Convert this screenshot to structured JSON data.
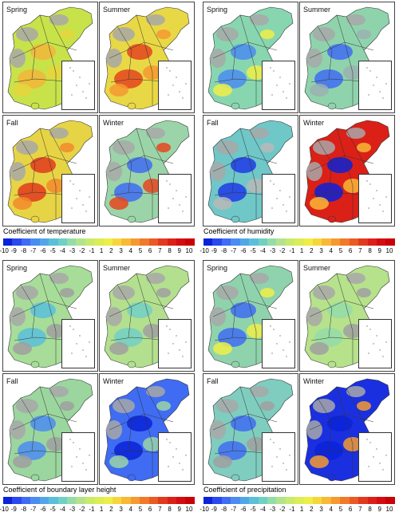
{
  "colorscale": [
    "#0a22d8",
    "#2a48ee",
    "#3f6cf2",
    "#4b8cf0",
    "#52a6e8",
    "#5bbfda",
    "#72cfc4",
    "#94dca9",
    "#b3e38d",
    "#c9ea6e",
    "#dced55",
    "#eeee48",
    "#f6d63c",
    "#f8b936",
    "#f59a30",
    "#f07a2a",
    "#ea5a24",
    "#e23a1e",
    "#db2018",
    "#d40c10",
    "#c80008"
  ],
  "tick_labels": [
    "-10",
    "-9",
    "-8",
    "-7",
    "-6",
    "-5",
    "-4",
    "-3",
    "-2",
    "-1",
    "1",
    "2",
    "3",
    "4",
    "5",
    "6",
    "7",
    "8",
    "9",
    "10"
  ],
  "panels": [
    {
      "colorbar_title": "Coefficient of temperature",
      "maps": [
        {
          "season": "Spring",
          "fill": "#c8e24a",
          "accents": [
            "#f2b53a",
            "#e8d53c"
          ]
        },
        {
          "season": "Summer",
          "fill": "#e9d845",
          "accents": [
            "#e4451f",
            "#f39a30"
          ]
        },
        {
          "season": "Fall",
          "fill": "#e7d445",
          "accents": [
            "#e03a1d",
            "#f28a2b"
          ]
        },
        {
          "season": "Winter",
          "fill": "#9bd4a8",
          "accents": [
            "#3f6cf2",
            "#e6451f"
          ]
        }
      ]
    },
    {
      "colorbar_title": "Coefficient of humidity",
      "maps": [
        {
          "season": "Spring",
          "fill": "#88d6b0",
          "accents": [
            "#4b8cf0",
            "#eeee48"
          ]
        },
        {
          "season": "Summer",
          "fill": "#8fd3ad",
          "accents": [
            "#3f6cf2",
            "#9bb0b0"
          ]
        },
        {
          "season": "Fall",
          "fill": "#6fc7c8",
          "accents": [
            "#1f3ae6",
            "#b8b8b8"
          ]
        },
        {
          "season": "Winter",
          "fill": "#db2018",
          "accents": [
            "#0a22d8",
            "#f8b936"
          ]
        }
      ]
    },
    {
      "colorbar_title": "Coefficient of boundary layer height",
      "maps": [
        {
          "season": "Spring",
          "fill": "#a7dd99",
          "accents": [
            "#5bbfda",
            "#a0a0a0"
          ]
        },
        {
          "season": "Summer",
          "fill": "#b3e08e",
          "accents": [
            "#72cfc4",
            "#a0a0a0"
          ]
        },
        {
          "season": "Fall",
          "fill": "#9bd69f",
          "accents": [
            "#4b8cf0",
            "#a0a0a0"
          ]
        },
        {
          "season": "Winter",
          "fill": "#3f6cf2",
          "accents": [
            "#0a22d8",
            "#9bd4a8"
          ]
        }
      ]
    },
    {
      "colorbar_title": "Coefficient of precipitation",
      "maps": [
        {
          "season": "Spring",
          "fill": "#8fd3ad",
          "accents": [
            "#3f6cf2",
            "#eeee48"
          ]
        },
        {
          "season": "Summer",
          "fill": "#b6e28b",
          "accents": [
            "#94dca9",
            "#a0a0a0"
          ]
        },
        {
          "season": "Fall",
          "fill": "#7fcdbf",
          "accents": [
            "#3f6cf2",
            "#a0a0a0"
          ]
        },
        {
          "season": "Winter",
          "fill": "#1a30e0",
          "accents": [
            "#0a22d8",
            "#f59a30"
          ]
        }
      ]
    }
  ]
}
